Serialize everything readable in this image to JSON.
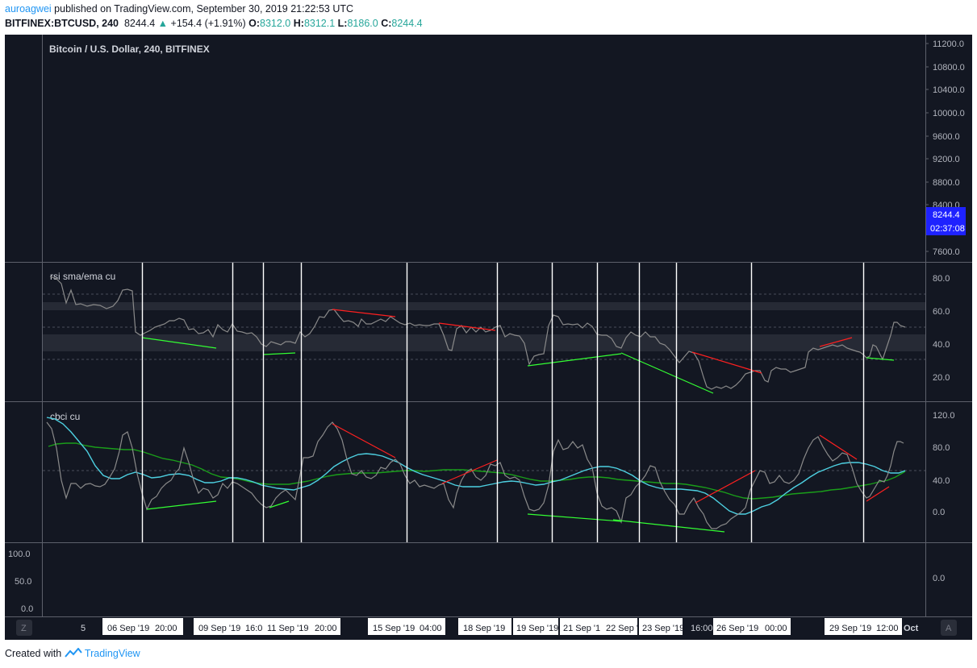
{
  "header": {
    "user": "auroagwei",
    "published_text": "published on TradingView.com, September 30, 2019 21:22:53 UTC",
    "symbol": "BITFINEX:BTCUSD, 240",
    "last_price": "8244.4",
    "change_arrow": "▲",
    "change": "+154.4 (+1.91%)",
    "o_label": "O:",
    "o_value": "8312.0",
    "h_label": "H:",
    "h_value": "8312.1",
    "l_label": "L:",
    "l_value": "8186.0",
    "c_label": "C:",
    "c_value": "8244.4"
  },
  "main_pane": {
    "title": "Bitcoin / U.S. Dollar, 240, BITFINEX",
    "price_axis": [
      "11200.0",
      "10800.0",
      "10400.0",
      "10000.0",
      "9600.0",
      "9200.0",
      "8800.0",
      "8400.0",
      "7600.0"
    ],
    "price_tag": "8244.4",
    "countdown_tag": "02:37:08",
    "accent_color": "#1e22ff"
  },
  "rsi_pane": {
    "title": "rsi sma/ema cu",
    "axis": [
      "80.0",
      "60.0",
      "40.0",
      "20.0"
    ]
  },
  "cbci_pane": {
    "title": "cbci cu",
    "axis": [
      "120.0",
      "80.0",
      "40.0",
      "0.0"
    ]
  },
  "bottom_pane": {
    "left_axis": [
      "100.0",
      "50.0",
      "0.0"
    ],
    "right_axis": [
      "0.0"
    ]
  },
  "time_axis": {
    "left_button": "Z",
    "right_button": "A",
    "labels": [
      "5",
      "06 Sep '19",
      "20:00",
      "09 Sep '19",
      "16:0",
      "11 Sep '19",
      "20:00",
      "15 Sep '19",
      "04:00",
      "18 Sep '19",
      "19 Sep '19",
      "21 Sep '1",
      "22 Sep '",
      "23 Sep '19",
      "16:00",
      "26 Sep '19",
      "00:00",
      "29 Sep '19",
      "12:00",
      "Oct"
    ]
  },
  "footer": {
    "created_with": "Created with",
    "brand": "TradingView"
  },
  "colors": {
    "background": "#131722",
    "rsi_line": "#8a8a8a",
    "cyan_line": "#4dd0e1",
    "green_line": "#1a9e1a",
    "divergence_bull": "#33ff33",
    "divergence_bear": "#ff2020",
    "vertical_markers": "#ffffff"
  }
}
